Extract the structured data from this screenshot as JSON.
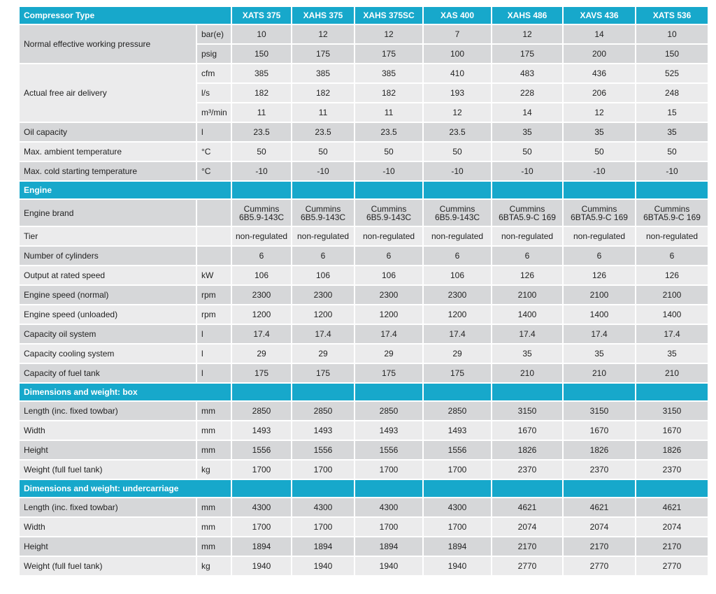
{
  "table": {
    "header": "Compressor Type",
    "columns": [
      "XATS 375",
      "XAHS 375",
      "XAHS 375SC",
      "XAS 400",
      "XAHS 486",
      "XAVS 436",
      "XATS 536"
    ],
    "sections": [
      {
        "groups": [
          {
            "label": "Normal effective working pressure",
            "rows": [
              {
                "unit": "bar(e)",
                "values": [
                  "10",
                  "12",
                  "12",
                  "7",
                  "12",
                  "14",
                  "10"
                ]
              },
              {
                "unit": "psig",
                "values": [
                  "150",
                  "175",
                  "175",
                  "100",
                  "175",
                  "200",
                  "150"
                ]
              }
            ]
          },
          {
            "label": "Actual free air delivery",
            "rows": [
              {
                "unit": "cfm",
                "values": [
                  "385",
                  "385",
                  "385",
                  "410",
                  "483",
                  "436",
                  "525"
                ]
              },
              {
                "unit": "l/s",
                "values": [
                  "182",
                  "182",
                  "182",
                  "193",
                  "228",
                  "206",
                  "248"
                ]
              },
              {
                "unit": "m³/min",
                "values": [
                  "11",
                  "11",
                  "11",
                  "12",
                  "14",
                  "12",
                  "15"
                ]
              }
            ]
          },
          {
            "label": "Oil capacity",
            "rows": [
              {
                "unit": "l",
                "values": [
                  "23.5",
                  "23.5",
                  "23.5",
                  "23.5",
                  "35",
                  "35",
                  "35"
                ]
              }
            ]
          },
          {
            "label": "Max. ambient temperature",
            "rows": [
              {
                "unit": "°C",
                "values": [
                  "50",
                  "50",
                  "50",
                  "50",
                  "50",
                  "50",
                  "50"
                ]
              }
            ]
          },
          {
            "label": "Max. cold starting temperature",
            "rows": [
              {
                "unit": "°C",
                "values": [
                  "-10",
                  "-10",
                  "-10",
                  "-10",
                  "-10",
                  "-10",
                  "-10"
                ]
              }
            ]
          }
        ]
      },
      {
        "title": "Engine",
        "groups": [
          {
            "label": "Engine brand",
            "rows": [
              {
                "values": [
                  "Cummins\n6B5.9-143C",
                  "Cummins\n6B5.9-143C",
                  "Cummins\n6B5.9-143C",
                  "Cummins\n6B5.9-143C",
                  "Cummins\n6BTA5.9-C 169",
                  "Cummins\n6BTA5.9-C 169",
                  "Cummins\n6BTA5.9-C 169"
                ]
              }
            ]
          },
          {
            "label": "Tier",
            "rows": [
              {
                "values": [
                  "non-regulated",
                  "non-regulated",
                  "non-regulated",
                  "non-regulated",
                  "non-regulated",
                  "non-regulated",
                  "non-regulated"
                ]
              }
            ]
          },
          {
            "label": "Number of cylinders",
            "rows": [
              {
                "values": [
                  "6",
                  "6",
                  "6",
                  "6",
                  "6",
                  "6",
                  "6"
                ]
              }
            ]
          },
          {
            "label": "Output at rated speed",
            "rows": [
              {
                "unit": "kW",
                "values": [
                  "106",
                  "106",
                  "106",
                  "106",
                  "126",
                  "126",
                  "126"
                ]
              }
            ]
          },
          {
            "label": "Engine speed (normal)",
            "rows": [
              {
                "unit": "rpm",
                "values": [
                  "2300",
                  "2300",
                  "2300",
                  "2300",
                  "2100",
                  "2100",
                  "2100"
                ]
              }
            ]
          },
          {
            "label": "Engine speed (unloaded)",
            "rows": [
              {
                "unit": "rpm",
                "values": [
                  "1200",
                  "1200",
                  "1200",
                  "1200",
                  "1400",
                  "1400",
                  "1400"
                ]
              }
            ]
          },
          {
            "label": "Capacity oil system",
            "rows": [
              {
                "unit": "l",
                "values": [
                  "17.4",
                  "17.4",
                  "17.4",
                  "17.4",
                  "17.4",
                  "17.4",
                  "17.4"
                ]
              }
            ]
          },
          {
            "label": "Capacity cooling system",
            "rows": [
              {
                "unit": "l",
                "values": [
                  "29",
                  "29",
                  "29",
                  "29",
                  "35",
                  "35",
                  "35"
                ]
              }
            ]
          },
          {
            "label": "Capacity of fuel tank",
            "rows": [
              {
                "unit": "l",
                "values": [
                  "175",
                  "175",
                  "175",
                  "175",
                  "210",
                  "210",
                  "210"
                ]
              }
            ]
          }
        ]
      },
      {
        "title": "Dimensions and weight: box",
        "groups": [
          {
            "label": "Length (inc. fixed towbar)",
            "rows": [
              {
                "unit": "mm",
                "values": [
                  "2850",
                  "2850",
                  "2850",
                  "2850",
                  "3150",
                  "3150",
                  "3150"
                ]
              }
            ]
          },
          {
            "label": "Width",
            "rows": [
              {
                "unit": "mm",
                "values": [
                  "1493",
                  "1493",
                  "1493",
                  "1493",
                  "1670",
                  "1670",
                  "1670"
                ]
              }
            ]
          },
          {
            "label": "Height",
            "rows": [
              {
                "unit": "mm",
                "values": [
                  "1556",
                  "1556",
                  "1556",
                  "1556",
                  "1826",
                  "1826",
                  "1826"
                ]
              }
            ]
          },
          {
            "label": "Weight (full fuel tank)",
            "rows": [
              {
                "unit": "kg",
                "values": [
                  "1700",
                  "1700",
                  "1700",
                  "1700",
                  "2370",
                  "2370",
                  "2370"
                ]
              }
            ]
          }
        ]
      },
      {
        "title": "Dimensions and weight: undercarriage",
        "groups": [
          {
            "label": "Length (inc. fixed towbar)",
            "rows": [
              {
                "unit": "mm",
                "values": [
                  "4300",
                  "4300",
                  "4300",
                  "4300",
                  "4621",
                  "4621",
                  "4621"
                ]
              }
            ]
          },
          {
            "label": "Width",
            "rows": [
              {
                "unit": "mm",
                "values": [
                  "1700",
                  "1700",
                  "1700",
                  "1700",
                  "2074",
                  "2074",
                  "2074"
                ]
              }
            ]
          },
          {
            "label": "Height",
            "rows": [
              {
                "unit": "mm",
                "values": [
                  "1894",
                  "1894",
                  "1894",
                  "1894",
                  "2170",
                  "2170",
                  "2170"
                ]
              }
            ]
          },
          {
            "label": "Weight (full fuel tank)",
            "rows": [
              {
                "unit": "kg",
                "values": [
                  "1940",
                  "1940",
                  "1940",
                  "1940",
                  "2770",
                  "2770",
                  "2770"
                ]
              }
            ]
          }
        ]
      }
    ]
  }
}
